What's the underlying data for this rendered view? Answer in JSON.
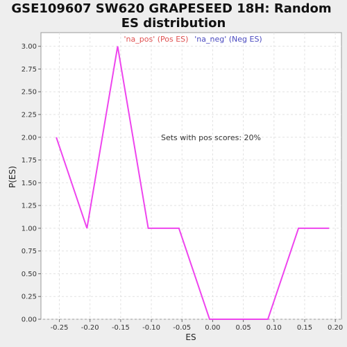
{
  "chart_data": {
    "type": "line",
    "title": [
      "GSE109607 SW620 GRAPESEED 18H: Random",
      "ES distribution"
    ],
    "xlabel": "ES",
    "ylabel": "P(ES)",
    "xlim": [
      -0.28,
      0.21
    ],
    "ylim": [
      0,
      3.15
    ],
    "xticks": [
      -0.25,
      -0.2,
      -0.15,
      -0.1,
      -0.05,
      0.0,
      0.05,
      0.1,
      0.15,
      0.2
    ],
    "xtick_labels": [
      "-0.25",
      "-0.20",
      "-0.15",
      "-0.10",
      "-0.05",
      "0.00",
      "0.05",
      "0.10",
      "0.15",
      "0.20"
    ],
    "yticks": [
      0,
      0.25,
      0.5,
      0.75,
      1.0,
      1.25,
      1.5,
      1.75,
      2.0,
      2.25,
      2.5,
      2.75,
      3.0
    ],
    "ytick_labels": [
      "0.00",
      "0.25",
      "0.50",
      "0.75",
      "1.00",
      "1.25",
      "1.50",
      "1.75",
      "2.00",
      "2.25",
      "2.50",
      "2.75",
      "3.00"
    ],
    "grid": true,
    "legend": [
      {
        "label": "'na_pos' (Pos ES)",
        "color": "#e05050"
      },
      {
        "label": "'na_neg' (Neg ES)",
        "color": "#4a4ac0"
      }
    ],
    "annotation": "Sets with pos scores: 20%",
    "series": [
      {
        "color": "#ee44ee",
        "x": [
          -0.255,
          -0.205,
          -0.155,
          -0.105,
          -0.055,
          -0.005,
          0.045,
          0.09,
          0.14,
          0.19
        ],
        "y": [
          2.0,
          1.0,
          3.0,
          1.0,
          1.0,
          0.0,
          0.0,
          0.0,
          1.0,
          1.0
        ]
      }
    ]
  }
}
